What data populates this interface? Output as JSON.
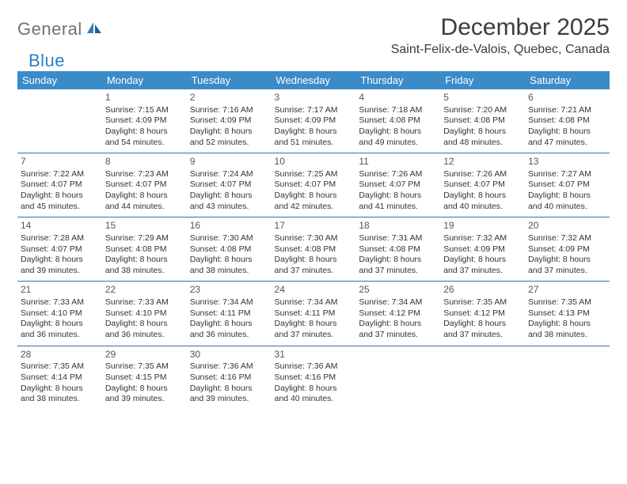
{
  "brand": {
    "name1": "General",
    "name2": "Blue"
  },
  "title": "December 2025",
  "location": "Saint-Felix-de-Valois, Quebec, Canada",
  "day_headers": [
    "Sunday",
    "Monday",
    "Tuesday",
    "Wednesday",
    "Thursday",
    "Friday",
    "Saturday"
  ],
  "colors": {
    "header_bg": "#3b8bc8",
    "header_text": "#ffffff",
    "rule": "#3b6fa5",
    "text": "#333333",
    "title": "#3a3c3e",
    "logo_gray": "#6f7276",
    "logo_blue": "#2d7fc1"
  },
  "weeks": [
    [
      null,
      {
        "n": "1",
        "sunrise": "Sunrise: 7:15 AM",
        "sunset": "Sunset: 4:09 PM",
        "day1": "Daylight: 8 hours",
        "day2": "and 54 minutes."
      },
      {
        "n": "2",
        "sunrise": "Sunrise: 7:16 AM",
        "sunset": "Sunset: 4:09 PM",
        "day1": "Daylight: 8 hours",
        "day2": "and 52 minutes."
      },
      {
        "n": "3",
        "sunrise": "Sunrise: 7:17 AM",
        "sunset": "Sunset: 4:09 PM",
        "day1": "Daylight: 8 hours",
        "day2": "and 51 minutes."
      },
      {
        "n": "4",
        "sunrise": "Sunrise: 7:18 AM",
        "sunset": "Sunset: 4:08 PM",
        "day1": "Daylight: 8 hours",
        "day2": "and 49 minutes."
      },
      {
        "n": "5",
        "sunrise": "Sunrise: 7:20 AM",
        "sunset": "Sunset: 4:08 PM",
        "day1": "Daylight: 8 hours",
        "day2": "and 48 minutes."
      },
      {
        "n": "6",
        "sunrise": "Sunrise: 7:21 AM",
        "sunset": "Sunset: 4:08 PM",
        "day1": "Daylight: 8 hours",
        "day2": "and 47 minutes."
      }
    ],
    [
      {
        "n": "7",
        "sunrise": "Sunrise: 7:22 AM",
        "sunset": "Sunset: 4:07 PM",
        "day1": "Daylight: 8 hours",
        "day2": "and 45 minutes."
      },
      {
        "n": "8",
        "sunrise": "Sunrise: 7:23 AM",
        "sunset": "Sunset: 4:07 PM",
        "day1": "Daylight: 8 hours",
        "day2": "and 44 minutes."
      },
      {
        "n": "9",
        "sunrise": "Sunrise: 7:24 AM",
        "sunset": "Sunset: 4:07 PM",
        "day1": "Daylight: 8 hours",
        "day2": "and 43 minutes."
      },
      {
        "n": "10",
        "sunrise": "Sunrise: 7:25 AM",
        "sunset": "Sunset: 4:07 PM",
        "day1": "Daylight: 8 hours",
        "day2": "and 42 minutes."
      },
      {
        "n": "11",
        "sunrise": "Sunrise: 7:26 AM",
        "sunset": "Sunset: 4:07 PM",
        "day1": "Daylight: 8 hours",
        "day2": "and 41 minutes."
      },
      {
        "n": "12",
        "sunrise": "Sunrise: 7:26 AM",
        "sunset": "Sunset: 4:07 PM",
        "day1": "Daylight: 8 hours",
        "day2": "and 40 minutes."
      },
      {
        "n": "13",
        "sunrise": "Sunrise: 7:27 AM",
        "sunset": "Sunset: 4:07 PM",
        "day1": "Daylight: 8 hours",
        "day2": "and 40 minutes."
      }
    ],
    [
      {
        "n": "14",
        "sunrise": "Sunrise: 7:28 AM",
        "sunset": "Sunset: 4:07 PM",
        "day1": "Daylight: 8 hours",
        "day2": "and 39 minutes."
      },
      {
        "n": "15",
        "sunrise": "Sunrise: 7:29 AM",
        "sunset": "Sunset: 4:08 PM",
        "day1": "Daylight: 8 hours",
        "day2": "and 38 minutes."
      },
      {
        "n": "16",
        "sunrise": "Sunrise: 7:30 AM",
        "sunset": "Sunset: 4:08 PM",
        "day1": "Daylight: 8 hours",
        "day2": "and 38 minutes."
      },
      {
        "n": "17",
        "sunrise": "Sunrise: 7:30 AM",
        "sunset": "Sunset: 4:08 PM",
        "day1": "Daylight: 8 hours",
        "day2": "and 37 minutes."
      },
      {
        "n": "18",
        "sunrise": "Sunrise: 7:31 AM",
        "sunset": "Sunset: 4:08 PM",
        "day1": "Daylight: 8 hours",
        "day2": "and 37 minutes."
      },
      {
        "n": "19",
        "sunrise": "Sunrise: 7:32 AM",
        "sunset": "Sunset: 4:09 PM",
        "day1": "Daylight: 8 hours",
        "day2": "and 37 minutes."
      },
      {
        "n": "20",
        "sunrise": "Sunrise: 7:32 AM",
        "sunset": "Sunset: 4:09 PM",
        "day1": "Daylight: 8 hours",
        "day2": "and 37 minutes."
      }
    ],
    [
      {
        "n": "21",
        "sunrise": "Sunrise: 7:33 AM",
        "sunset": "Sunset: 4:10 PM",
        "day1": "Daylight: 8 hours",
        "day2": "and 36 minutes."
      },
      {
        "n": "22",
        "sunrise": "Sunrise: 7:33 AM",
        "sunset": "Sunset: 4:10 PM",
        "day1": "Daylight: 8 hours",
        "day2": "and 36 minutes."
      },
      {
        "n": "23",
        "sunrise": "Sunrise: 7:34 AM",
        "sunset": "Sunset: 4:11 PM",
        "day1": "Daylight: 8 hours",
        "day2": "and 36 minutes."
      },
      {
        "n": "24",
        "sunrise": "Sunrise: 7:34 AM",
        "sunset": "Sunset: 4:11 PM",
        "day1": "Daylight: 8 hours",
        "day2": "and 37 minutes."
      },
      {
        "n": "25",
        "sunrise": "Sunrise: 7:34 AM",
        "sunset": "Sunset: 4:12 PM",
        "day1": "Daylight: 8 hours",
        "day2": "and 37 minutes."
      },
      {
        "n": "26",
        "sunrise": "Sunrise: 7:35 AM",
        "sunset": "Sunset: 4:12 PM",
        "day1": "Daylight: 8 hours",
        "day2": "and 37 minutes."
      },
      {
        "n": "27",
        "sunrise": "Sunrise: 7:35 AM",
        "sunset": "Sunset: 4:13 PM",
        "day1": "Daylight: 8 hours",
        "day2": "and 38 minutes."
      }
    ],
    [
      {
        "n": "28",
        "sunrise": "Sunrise: 7:35 AM",
        "sunset": "Sunset: 4:14 PM",
        "day1": "Daylight: 8 hours",
        "day2": "and 38 minutes."
      },
      {
        "n": "29",
        "sunrise": "Sunrise: 7:35 AM",
        "sunset": "Sunset: 4:15 PM",
        "day1": "Daylight: 8 hours",
        "day2": "and 39 minutes."
      },
      {
        "n": "30",
        "sunrise": "Sunrise: 7:36 AM",
        "sunset": "Sunset: 4:16 PM",
        "day1": "Daylight: 8 hours",
        "day2": "and 39 minutes."
      },
      {
        "n": "31",
        "sunrise": "Sunrise: 7:36 AM",
        "sunset": "Sunset: 4:16 PM",
        "day1": "Daylight: 8 hours",
        "day2": "and 40 minutes."
      },
      null,
      null,
      null
    ]
  ]
}
